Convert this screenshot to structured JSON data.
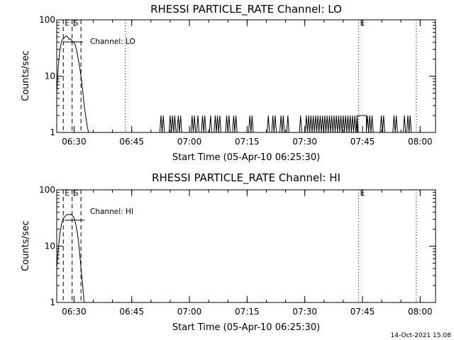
{
  "timestamp": "14-Oct-2021 15:08",
  "chart_data": [
    {
      "type": "line",
      "title": "RHESSI PARTICLE_RATE Channel: LO",
      "xlabel": "Start Time (05-Apr-10 06:25:30)",
      "ylabel": "Counts/sec",
      "yscale": "log",
      "ylim": [
        1,
        100
      ],
      "xlim_minutes": [
        0,
        98.5
      ],
      "y_ticks": [
        "1",
        "10",
        "100"
      ],
      "x_ticks": [
        {
          "label": "06:30",
          "t": 4.5
        },
        {
          "label": "06:45",
          "t": 19.5
        },
        {
          "label": "07:00",
          "t": 34.5
        },
        {
          "label": "07:15",
          "t": 49.5
        },
        {
          "label": "07:30",
          "t": 64.5
        },
        {
          "label": "07:45",
          "t": 79.5
        },
        {
          "label": "08:00",
          "t": 94.5
        }
      ],
      "series_label": "Channel: LO",
      "markers": [
        {
          "label": "E",
          "t": 1.7,
          "style": "dashed"
        },
        {
          "label": "S",
          "t": 4.0,
          "style": "dashed"
        },
        {
          "label": "",
          "t": 6.3,
          "style": "dashed"
        },
        {
          "label": "",
          "t": 17.8,
          "style": "dotted"
        },
        {
          "label": "E",
          "t": 78.5,
          "style": "dotted"
        },
        {
          "label": "",
          "t": 93.5,
          "style": "dotted"
        }
      ],
      "curve": [
        {
          "t": 0.0,
          "y": 5
        },
        {
          "t": 0.4,
          "y": 15
        },
        {
          "t": 0.8,
          "y": 28
        },
        {
          "t": 1.2,
          "y": 40
        },
        {
          "t": 1.6,
          "y": 46
        },
        {
          "t": 2.0,
          "y": 48
        },
        {
          "t": 2.4,
          "y": 52
        },
        {
          "t": 2.8,
          "y": 50
        },
        {
          "t": 3.2,
          "y": 45
        },
        {
          "t": 3.6,
          "y": 46
        },
        {
          "t": 4.0,
          "y": 42
        },
        {
          "t": 4.4,
          "y": 40
        },
        {
          "t": 4.8,
          "y": 36
        },
        {
          "t": 5.2,
          "y": 28
        },
        {
          "t": 5.6,
          "y": 20
        },
        {
          "t": 6.0,
          "y": 14
        },
        {
          "t": 6.4,
          "y": 9
        },
        {
          "t": 6.8,
          "y": 5
        },
        {
          "t": 7.2,
          "y": 2.8
        },
        {
          "t": 7.6,
          "y": 1.8
        },
        {
          "t": 8.0,
          "y": 1.2
        },
        {
          "t": 8.3,
          "y": 1.0
        }
      ],
      "spikes": [
        {
          "t": 27.1,
          "y": 2
        },
        {
          "t": 27.7,
          "y": 2
        },
        {
          "t": 29.5,
          "y": 2
        },
        {
          "t": 30.1,
          "y": 2
        },
        {
          "t": 30.7,
          "y": 2
        },
        {
          "t": 31.6,
          "y": 2
        },
        {
          "t": 32.2,
          "y": 2
        },
        {
          "t": 35.2,
          "y": 2
        },
        {
          "t": 35.8,
          "y": 2
        },
        {
          "t": 36.7,
          "y": 2
        },
        {
          "t": 37.9,
          "y": 2
        },
        {
          "t": 38.5,
          "y": 2
        },
        {
          "t": 40.0,
          "y": 2
        },
        {
          "t": 41.2,
          "y": 2
        },
        {
          "t": 41.8,
          "y": 2
        },
        {
          "t": 42.4,
          "y": 2
        },
        {
          "t": 44.2,
          "y": 2
        },
        {
          "t": 44.8,
          "y": 2
        },
        {
          "t": 46.0,
          "y": 2
        },
        {
          "t": 46.6,
          "y": 2
        },
        {
          "t": 50.2,
          "y": 2
        },
        {
          "t": 50.8,
          "y": 2
        },
        {
          "t": 55.0,
          "y": 2
        },
        {
          "t": 56.2,
          "y": 2
        },
        {
          "t": 56.8,
          "y": 2
        },
        {
          "t": 58.3,
          "y": 2
        },
        {
          "t": 58.9,
          "y": 2
        },
        {
          "t": 60.1,
          "y": 2
        },
        {
          "t": 63.4,
          "y": 2
        },
        {
          "t": 64.9,
          "y": 2
        },
        {
          "t": 65.5,
          "y": 2
        },
        {
          "t": 66.1,
          "y": 2
        },
        {
          "t": 66.7,
          "y": 2
        },
        {
          "t": 67.3,
          "y": 2
        },
        {
          "t": 67.9,
          "y": 2
        },
        {
          "t": 68.5,
          "y": 2
        },
        {
          "t": 69.1,
          "y": 2
        },
        {
          "t": 69.7,
          "y": 2
        },
        {
          "t": 70.3,
          "y": 2
        },
        {
          "t": 70.9,
          "y": 2
        },
        {
          "t": 71.5,
          "y": 2
        },
        {
          "t": 72.1,
          "y": 2
        },
        {
          "t": 72.7,
          "y": 2
        },
        {
          "t": 73.3,
          "y": 2
        },
        {
          "t": 73.9,
          "y": 2
        },
        {
          "t": 74.5,
          "y": 2
        },
        {
          "t": 75.1,
          "y": 2
        },
        {
          "t": 75.7,
          "y": 2
        },
        {
          "t": 76.3,
          "y": 2
        },
        {
          "t": 76.9,
          "y": 2
        },
        {
          "t": 77.5,
          "y": 2
        },
        {
          "t": 78.1,
          "y": 2
        },
        {
          "t": 80.8,
          "y": 2
        },
        {
          "t": 81.4,
          "y": 2
        },
        {
          "t": 82.0,
          "y": 2
        },
        {
          "t": 84.4,
          "y": 2
        },
        {
          "t": 85.0,
          "y": 2
        },
        {
          "t": 87.7,
          "y": 2
        },
        {
          "t": 88.3,
          "y": 2
        },
        {
          "t": 90.4,
          "y": 2
        },
        {
          "t": 91.3,
          "y": 2
        },
        {
          "t": 91.9,
          "y": 2
        }
      ],
      "plateaus": [
        {
          "t0": 78.1,
          "t1": 80.5,
          "y": 2
        }
      ]
    },
    {
      "type": "line",
      "title": "RHESSI PARTICLE_RATE Channel: HI",
      "xlabel": "Start Time (05-Apr-10 06:25:30)",
      "ylabel": "Counts/sec",
      "yscale": "log",
      "ylim": [
        1,
        100
      ],
      "xlim_minutes": [
        0,
        98.5
      ],
      "y_ticks": [
        "1",
        "10",
        "100"
      ],
      "x_ticks": [
        {
          "label": "06:30",
          "t": 4.5
        },
        {
          "label": "06:45",
          "t": 19.5
        },
        {
          "label": "07:00",
          "t": 34.5
        },
        {
          "label": "07:15",
          "t": 49.5
        },
        {
          "label": "07:30",
          "t": 64.5
        },
        {
          "label": "07:45",
          "t": 79.5
        },
        {
          "label": "08:00",
          "t": 94.5
        }
      ],
      "series_label": "Channel: HI",
      "markers": [
        {
          "label": "E",
          "t": 1.7,
          "style": "dashed"
        },
        {
          "label": "S",
          "t": 4.0,
          "style": "dashed"
        },
        {
          "label": "",
          "t": 6.3,
          "style": "dashed"
        },
        {
          "label": "E",
          "t": 78.5,
          "style": "dotted"
        },
        {
          "label": "",
          "t": 93.5,
          "style": "dotted"
        }
      ],
      "curve": [
        {
          "t": 0.0,
          "y": 4
        },
        {
          "t": 0.4,
          "y": 9
        },
        {
          "t": 0.8,
          "y": 16
        },
        {
          "t": 1.2,
          "y": 24
        },
        {
          "t": 1.6,
          "y": 30
        },
        {
          "t": 2.0,
          "y": 33
        },
        {
          "t": 2.4,
          "y": 35
        },
        {
          "t": 2.8,
          "y": 37
        },
        {
          "t": 3.2,
          "y": 36
        },
        {
          "t": 3.6,
          "y": 37
        },
        {
          "t": 4.0,
          "y": 35
        },
        {
          "t": 4.4,
          "y": 33
        },
        {
          "t": 4.8,
          "y": 27
        },
        {
          "t": 5.2,
          "y": 20
        },
        {
          "t": 5.6,
          "y": 13
        },
        {
          "t": 6.0,
          "y": 7
        },
        {
          "t": 6.4,
          "y": 3.5
        },
        {
          "t": 6.8,
          "y": 1.8
        },
        {
          "t": 7.1,
          "y": 1.0
        }
      ],
      "spikes": [],
      "plateaus": []
    }
  ]
}
